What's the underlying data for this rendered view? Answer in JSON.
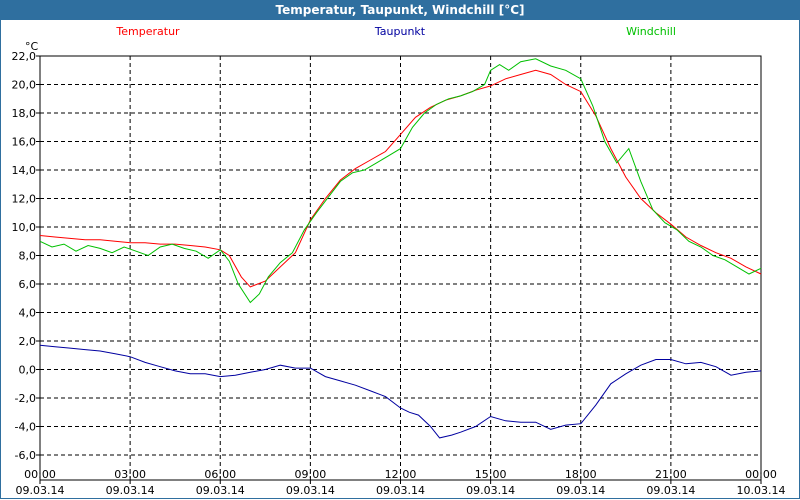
{
  "window": {
    "title": "Temperatur, Taupunkt, Windchill [°C]"
  },
  "chart_data": {
    "type": "line",
    "title": "Temperatur, Taupunkt, Windchill [°C]",
    "ylabel": "°C",
    "ylim": [
      -6.0,
      22.0
    ],
    "yticks": [
      "22,0",
      "20,0",
      "18,0",
      "16,0",
      "14,0",
      "12,0",
      "10,0",
      "8,0",
      "6,0",
      "4,0",
      "2,0",
      "0,0",
      "-2,0",
      "-4,0",
      "-6,0"
    ],
    "xlim_hours": [
      0,
      24
    ],
    "xticks": [
      {
        "time": "00:00",
        "date": "09.03.14"
      },
      {
        "time": "03:00",
        "date": "09.03.14"
      },
      {
        "time": "06:00",
        "date": "09.03.14"
      },
      {
        "time": "09:00",
        "date": "09.03.14"
      },
      {
        "time": "12:00",
        "date": "09.03.14"
      },
      {
        "time": "15:00",
        "date": "09.03.14"
      },
      {
        "time": "18:00",
        "date": "09.03.14"
      },
      {
        "time": "21:00",
        "date": "09.03.14"
      },
      {
        "time": "00:00",
        "date": "10.03.14"
      }
    ],
    "series": [
      {
        "name": "Temperatur",
        "color": "#ff0000",
        "x": [
          0,
          0.5,
          1,
          1.5,
          2,
          2.5,
          3,
          3.5,
          4,
          4.5,
          5,
          5.5,
          6,
          6.3,
          6.7,
          7,
          7.5,
          8,
          8.5,
          9,
          9.5,
          10,
          10.5,
          11,
          11.5,
          12,
          12.5,
          13,
          13.5,
          14,
          14.5,
          15,
          15.5,
          16,
          16.5,
          17,
          17.5,
          18,
          18.5,
          19,
          19.5,
          20,
          20.5,
          21,
          21.5,
          22,
          22.5,
          23,
          23.5,
          24
        ],
        "values": [
          9.4,
          9.3,
          9.2,
          9.1,
          9.1,
          9.0,
          8.9,
          8.9,
          8.8,
          8.8,
          8.7,
          8.6,
          8.4,
          8.0,
          6.5,
          5.8,
          6.2,
          7.2,
          8.2,
          10.5,
          12.0,
          13.3,
          14.1,
          14.7,
          15.3,
          16.5,
          17.7,
          18.4,
          18.9,
          19.2,
          19.6,
          19.9,
          20.4,
          20.7,
          21.0,
          20.7,
          20.0,
          19.5,
          17.8,
          15.5,
          13.5,
          12.0,
          11.0,
          10.2,
          9.3,
          8.7,
          8.2,
          7.8,
          7.2,
          6.7
        ]
      },
      {
        "name": "Taupunkt",
        "color": "#0000a0",
        "x": [
          0,
          0.5,
          1,
          1.5,
          2,
          2.5,
          3,
          3.5,
          4,
          4.5,
          5,
          5.5,
          6,
          6.5,
          7,
          7.5,
          8,
          8.5,
          9,
          9.5,
          10,
          10.5,
          11,
          11.5,
          12,
          12.3,
          12.6,
          13,
          13.3,
          13.7,
          14,
          14.5,
          15,
          15.5,
          16,
          16.5,
          17,
          17.5,
          18,
          18.5,
          19,
          19.5,
          20,
          20.5,
          21,
          21.5,
          22,
          22.5,
          23,
          23.5,
          24
        ],
        "values": [
          1.7,
          1.6,
          1.5,
          1.4,
          1.3,
          1.1,
          0.9,
          0.5,
          0.2,
          -0.1,
          -0.3,
          -0.3,
          -0.5,
          -0.4,
          -0.2,
          0.0,
          0.3,
          0.1,
          0.1,
          -0.5,
          -0.8,
          -1.1,
          -1.5,
          -1.9,
          -2.7,
          -3.0,
          -3.2,
          -4.0,
          -4.8,
          -4.6,
          -4.4,
          -4.0,
          -3.3,
          -3.6,
          -3.7,
          -3.7,
          -4.2,
          -3.9,
          -3.8,
          -2.5,
          -1.0,
          -0.3,
          0.3,
          0.7,
          0.7,
          0.4,
          0.5,
          0.2,
          -0.4,
          -0.2,
          -0.1
        ]
      },
      {
        "name": "Windchill",
        "color": "#00c000",
        "x": [
          0,
          0.4,
          0.8,
          1.2,
          1.6,
          2,
          2.4,
          2.8,
          3.2,
          3.6,
          4,
          4.4,
          4.8,
          5.2,
          5.6,
          6,
          6.3,
          6.6,
          7,
          7.3,
          7.6,
          8,
          8.4,
          8.8,
          9.2,
          9.6,
          10,
          10.4,
          10.8,
          11.2,
          11.6,
          12,
          12.4,
          12.8,
          13.2,
          13.6,
          14,
          14.4,
          14.8,
          15,
          15.3,
          15.6,
          16,
          16.5,
          17,
          17.5,
          18,
          18.4,
          18.8,
          19.2,
          19.6,
          20,
          20.4,
          20.8,
          21.2,
          21.6,
          22,
          22.4,
          22.8,
          23.2,
          23.6,
          24
        ],
        "values": [
          9.0,
          8.6,
          8.8,
          8.3,
          8.7,
          8.5,
          8.2,
          8.6,
          8.3,
          8.0,
          8.6,
          8.8,
          8.5,
          8.3,
          7.8,
          8.4,
          7.6,
          6.0,
          4.7,
          5.3,
          6.5,
          7.5,
          8.2,
          9.8,
          11.0,
          12.1,
          13.2,
          13.8,
          14.0,
          14.5,
          15.0,
          15.5,
          17.0,
          18.0,
          18.6,
          19.0,
          19.2,
          19.5,
          20.0,
          21.0,
          21.4,
          21.0,
          21.6,
          21.8,
          21.3,
          21.0,
          20.4,
          18.5,
          16.0,
          14.5,
          15.5,
          13.2,
          11.2,
          10.3,
          9.8,
          9.0,
          8.6,
          8.0,
          7.7,
          7.2,
          6.7,
          7.1
        ]
      }
    ]
  }
}
